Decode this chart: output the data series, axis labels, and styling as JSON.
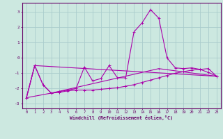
{
  "xlabel": "Windchill (Refroidissement éolien,°C)",
  "background_color": "#cce8e0",
  "grid_color": "#aacccc",
  "line_color": "#aa00aa",
  "xlim": [
    -0.5,
    23.5
  ],
  "ylim": [
    -3.3,
    3.6
  ],
  "yticks": [
    -3,
    -2,
    -1,
    0,
    1,
    2,
    3
  ],
  "xticks": [
    0,
    1,
    2,
    3,
    4,
    5,
    6,
    7,
    8,
    9,
    10,
    11,
    12,
    13,
    14,
    15,
    16,
    17,
    18,
    19,
    20,
    21,
    22,
    23
  ],
  "line1_x": [
    0,
    1,
    2,
    3,
    4,
    5,
    6,
    7,
    8,
    9,
    10,
    11,
    12,
    13,
    14,
    15,
    16,
    17,
    18,
    19,
    20,
    21,
    22,
    23
  ],
  "line1_y": [
    -2.6,
    -0.5,
    -1.75,
    -2.3,
    -2.25,
    -2.15,
    -2.1,
    -2.1,
    -2.1,
    -2.05,
    -2.0,
    -1.95,
    -1.85,
    -1.75,
    -1.6,
    -1.45,
    -1.3,
    -1.15,
    -1.0,
    -0.9,
    -0.8,
    -0.75,
    -0.7,
    -1.2
  ],
  "line2_x": [
    0,
    1,
    2,
    3,
    4,
    5,
    6,
    7,
    8,
    9,
    10,
    11,
    12,
    13,
    14,
    15,
    16,
    17,
    18,
    19,
    20,
    21,
    22,
    23
  ],
  "line2_y": [
    -2.6,
    -0.5,
    -1.75,
    -2.3,
    -2.2,
    -2.1,
    -2.0,
    -0.6,
    -1.5,
    -1.35,
    -0.5,
    -1.3,
    -1.3,
    1.7,
    2.3,
    3.15,
    2.6,
    0.0,
    -0.65,
    -0.7,
    -0.65,
    -0.75,
    -0.95,
    -1.2
  ],
  "line3_x": [
    0,
    1,
    23
  ],
  "line3_y": [
    -2.6,
    -0.5,
    -1.2
  ],
  "line4_x": [
    0,
    3,
    16,
    23
  ],
  "line4_y": [
    -2.6,
    -2.3,
    -0.7,
    -1.2
  ]
}
